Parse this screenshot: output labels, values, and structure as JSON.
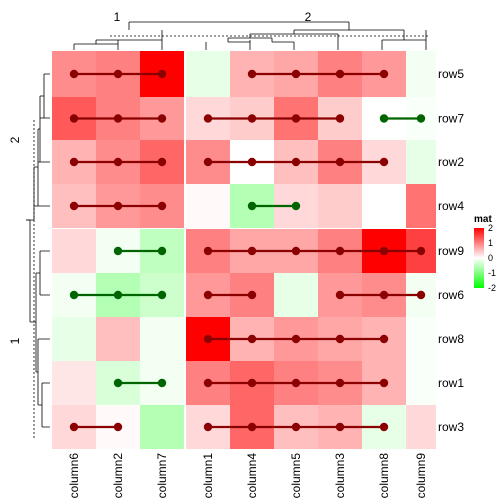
{
  "chart_data": {
    "type": "heatmap",
    "title": "",
    "columns": [
      "column6",
      "column2",
      "column7",
      "column1",
      "column4",
      "column5",
      "column3",
      "column8",
      "column9"
    ],
    "rows": [
      "row5",
      "row7",
      "row2",
      "row4",
      "row9",
      "row6",
      "row8",
      "row1",
      "row3"
    ],
    "column_groups": [
      {
        "label": "1",
        "columns": [
          "column6",
          "column2",
          "column7"
        ]
      },
      {
        "label": "2",
        "columns": [
          "column1",
          "column4",
          "column5",
          "column3",
          "column8",
          "column9"
        ]
      }
    ],
    "row_groups": [
      {
        "label": "2",
        "rows": [
          "row5",
          "row7",
          "row2",
          "row4"
        ]
      },
      {
        "label": "1",
        "rows": [
          "row9",
          "row6",
          "row8",
          "row1",
          "row3"
        ]
      }
    ],
    "matrix": [
      [
        0.9,
        1.0,
        2.3,
        -0.2,
        0.6,
        0.7,
        1.0,
        0.8,
        -0.1
      ],
      [
        1.3,
        1.0,
        0.8,
        0.3,
        0.4,
        1.1,
        0.4,
        0.0,
        -0.05
      ],
      [
        0.6,
        0.9,
        1.2,
        0.9,
        0.0,
        0.5,
        1.0,
        0.3,
        -0.2
      ],
      [
        0.5,
        0.8,
        0.9,
        0.05,
        -0.6,
        0.3,
        0.4,
        0.0,
        1.1
      ],
      [
        0.3,
        -0.1,
        -0.5,
        1.0,
        0.7,
        0.7,
        1.0,
        2.0,
        1.5
      ],
      [
        -0.1,
        -0.6,
        -0.4,
        0.8,
        1.0,
        -0.2,
        0.8,
        0.9,
        -0.1
      ],
      [
        -0.2,
        0.5,
        -0.1,
        2.5,
        0.6,
        0.8,
        0.7,
        0.6,
        -0.05
      ],
      [
        0.2,
        -0.3,
        -0.1,
        1.0,
        1.2,
        1.0,
        0.9,
        0.6,
        -0.05
      ],
      [
        0.3,
        0.05,
        -0.6,
        0.3,
        1.2,
        0.5,
        0.6,
        -0.2,
        0.3
      ]
    ],
    "segments": [
      {
        "row": "row5",
        "from": "column6",
        "to": "column7",
        "color": "#8b0000"
      },
      {
        "row": "row5",
        "from": "column4",
        "to": "column8",
        "color": "#8b0000"
      },
      {
        "row": "row7",
        "from": "column6",
        "to": "column7",
        "color": "#8b0000"
      },
      {
        "row": "row7",
        "from": "column1",
        "to": "column3",
        "color": "#8b0000"
      },
      {
        "row": "row7",
        "from": "column8",
        "to": "column9",
        "color": "#006400"
      },
      {
        "row": "row2",
        "from": "column6",
        "to": "column7",
        "color": "#8b0000"
      },
      {
        "row": "row2",
        "from": "column1",
        "to": "column8",
        "color": "#8b0000"
      },
      {
        "row": "row4",
        "from": "column6",
        "to": "column7",
        "color": "#8b0000"
      },
      {
        "row": "row4",
        "from": "column4",
        "to": "column5",
        "color": "#006400"
      },
      {
        "row": "row9",
        "from": "column2",
        "to": "column7",
        "color": "#006400"
      },
      {
        "row": "row9",
        "from": "column1",
        "to": "column9",
        "color": "#8b0000"
      },
      {
        "row": "row6",
        "from": "column6",
        "to": "column7",
        "color": "#006400"
      },
      {
        "row": "row6",
        "from": "column1",
        "to": "column4",
        "color": "#8b0000"
      },
      {
        "row": "row6",
        "from": "column3",
        "to": "column9",
        "color": "#8b0000"
      },
      {
        "row": "row8",
        "from": "column1",
        "to": "column8",
        "color": "#8b0000"
      },
      {
        "row": "row1",
        "from": "column2",
        "to": "column7",
        "color": "#006400"
      },
      {
        "row": "row1",
        "from": "column1",
        "to": "column8",
        "color": "#8b0000"
      },
      {
        "row": "row3",
        "from": "column6",
        "to": "column2",
        "color": "#8b0000"
      },
      {
        "row": "row3",
        "from": "column1",
        "to": "column8",
        "color": "#8b0000"
      }
    ],
    "legend": {
      "title": "mat",
      "ticks": [
        2,
        1,
        0,
        -1,
        -2
      ],
      "placement": "right",
      "colors": {
        "low": "#00ff00",
        "mid": "#ffffff",
        "high": "#ff0000"
      },
      "range": [
        -2,
        2
      ]
    }
  }
}
